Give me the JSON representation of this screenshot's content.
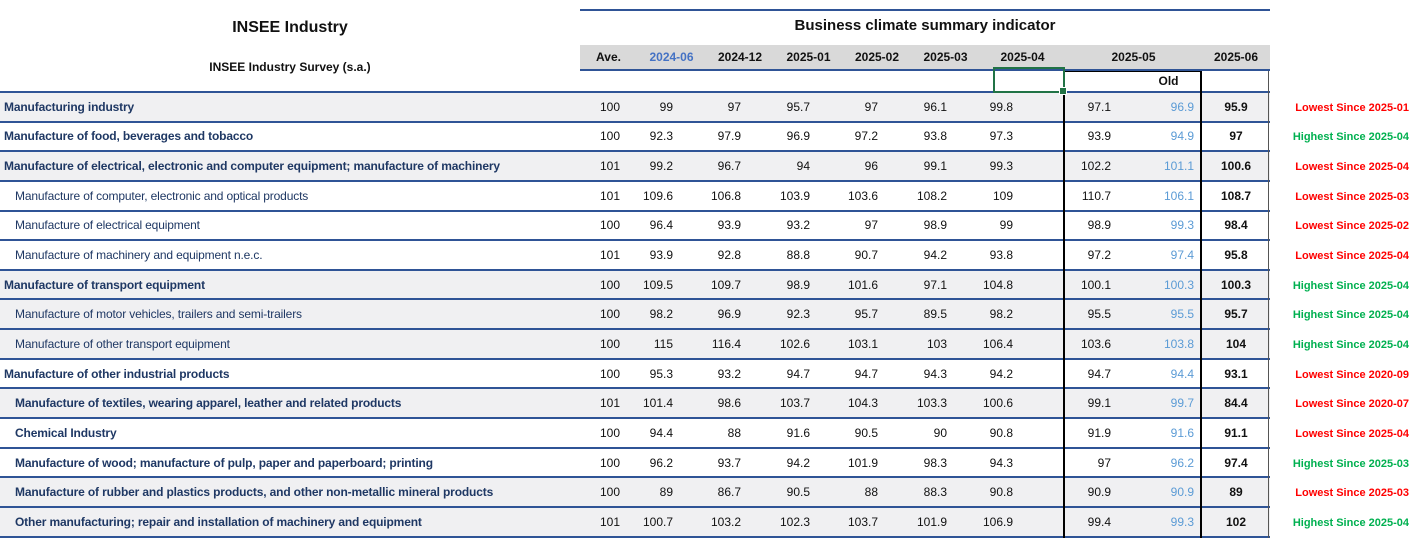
{
  "left_header": {
    "title": "INSEE Industry",
    "subtitle": "INSEE Industry Survey (s.a.)"
  },
  "table": {
    "title": "Business climate summary indicator",
    "columns": [
      "Ave.",
      "2024-06",
      "2024-12",
      "2025-01",
      "2025-02",
      "2025-03",
      "2025-04",
      "2025-05",
      "2025-06"
    ],
    "old_sublabel": "Old",
    "highlighted_column": "2024-06",
    "rows": [
      {
        "label": "Manufacturing industry",
        "bold": true,
        "indent": 0,
        "shaded": true,
        "values": [
          "100",
          "99",
          "97",
          "95.7",
          "97",
          "96.1",
          "99.8",
          "97.1",
          "96.9",
          "95.9"
        ],
        "status": {
          "text": "Lowest Since 2025-01",
          "type": "lowest"
        }
      },
      {
        "label": "Manufacture of food, beverages and tobacco",
        "bold": true,
        "indent": 0,
        "shaded": false,
        "values": [
          "100",
          "92.3",
          "97.9",
          "96.9",
          "97.2",
          "93.8",
          "97.3",
          "93.9",
          "94.9",
          "97"
        ],
        "status": {
          "text": "Highest Since 2025-04",
          "type": "highest"
        }
      },
      {
        "label": "Manufacture of electrical, electronic and computer equipment; manufacture of machinery",
        "bold": true,
        "indent": 0,
        "shaded": true,
        "values": [
          "101",
          "99.2",
          "96.7",
          "94",
          "96",
          "99.1",
          "99.3",
          "102.2",
          "101.1",
          "100.6"
        ],
        "status": {
          "text": "Lowest Since 2025-04",
          "type": "lowest"
        }
      },
      {
        "label": "Manufacture of computer, electronic and optical products",
        "bold": false,
        "indent": 1,
        "shaded": false,
        "values": [
          "101",
          "109.6",
          "106.8",
          "103.9",
          "103.6",
          "108.2",
          "109",
          "110.7",
          "106.1",
          "108.7"
        ],
        "status": {
          "text": "Lowest Since 2025-03",
          "type": "lowest"
        }
      },
      {
        "label": "Manufacture of electrical equipment",
        "bold": false,
        "indent": 1,
        "shaded": false,
        "values": [
          "100",
          "96.4",
          "93.9",
          "93.2",
          "97",
          "98.9",
          "99",
          "98.9",
          "99.3",
          "98.4"
        ],
        "status": {
          "text": "Lowest Since 2025-02",
          "type": "lowest"
        }
      },
      {
        "label": "Manufacture of machinery and equipment n.e.c.",
        "bold": false,
        "indent": 1,
        "shaded": false,
        "values": [
          "101",
          "93.9",
          "92.8",
          "88.8",
          "90.7",
          "94.2",
          "93.8",
          "97.2",
          "97.4",
          "95.8"
        ],
        "status": {
          "text": "Lowest Since 2025-04",
          "type": "lowest"
        }
      },
      {
        "label": "Manufacture of transport equipment",
        "bold": true,
        "indent": 0,
        "shaded": true,
        "values": [
          "100",
          "109.5",
          "109.7",
          "98.9",
          "101.6",
          "97.1",
          "104.8",
          "100.1",
          "100.3",
          "100.3"
        ],
        "status": {
          "text": "Highest Since 2025-04",
          "type": "highest"
        }
      },
      {
        "label": "Manufacture of motor vehicles, trailers and semi-trailers",
        "bold": false,
        "indent": 1,
        "shaded": true,
        "values": [
          "100",
          "98.2",
          "96.9",
          "92.3",
          "95.7",
          "89.5",
          "98.2",
          "95.5",
          "95.5",
          "95.7"
        ],
        "status": {
          "text": "Highest Since 2025-04",
          "type": "highest"
        }
      },
      {
        "label": "Manufacture of other transport equipment",
        "bold": false,
        "indent": 1,
        "shaded": true,
        "values": [
          "100",
          "115",
          "116.4",
          "102.6",
          "103.1",
          "103",
          "106.4",
          "103.6",
          "103.8",
          "104"
        ],
        "status": {
          "text": "Highest Since 2025-04",
          "type": "highest"
        }
      },
      {
        "label": "Manufacture of other industrial products",
        "bold": true,
        "indent": 0,
        "shaded": false,
        "values": [
          "100",
          "95.3",
          "93.2",
          "94.7",
          "94.7",
          "94.3",
          "94.2",
          "94.7",
          "94.4",
          "93.1"
        ],
        "status": {
          "text": "Lowest Since 2020-09",
          "type": "lowest"
        }
      },
      {
        "label": "Manufacture of textiles, wearing apparel, leather and related products",
        "bold": true,
        "indent": 1,
        "shaded": true,
        "values": [
          "101",
          "101.4",
          "98.6",
          "103.7",
          "104.3",
          "103.3",
          "100.6",
          "99.1",
          "99.7",
          "84.4"
        ],
        "status": {
          "text": "Lowest Since 2020-07",
          "type": "lowest"
        }
      },
      {
        "label": "Chemical Industry",
        "bold": true,
        "indent": 1,
        "shaded": false,
        "values": [
          "100",
          "94.4",
          "88",
          "91.6",
          "90.5",
          "90",
          "90.8",
          "91.9",
          "91.6",
          "91.1"
        ],
        "status": {
          "text": "Lowest Since 2025-04",
          "type": "lowest"
        }
      },
      {
        "label": "Manufacture of wood; manufacture of pulp, paper and paperboard; printing",
        "bold": true,
        "indent": 1,
        "shaded": false,
        "values": [
          "100",
          "96.2",
          "93.7",
          "94.2",
          "101.9",
          "98.3",
          "94.3",
          "97",
          "96.2",
          "97.4"
        ],
        "status": {
          "text": "Highest Since 2025-03",
          "type": "highest"
        }
      },
      {
        "label": "Manufacture of rubber and plastics products, and other non-metallic mineral products",
        "bold": true,
        "indent": 1,
        "shaded": true,
        "values": [
          "100",
          "89",
          "86.7",
          "90.5",
          "88",
          "88.3",
          "90.8",
          "90.9",
          "90.9",
          "89"
        ],
        "status": {
          "text": "Lowest Since 2025-03",
          "type": "lowest"
        }
      },
      {
        "label": "Other manufacturing; repair and installation of machinery and equipment",
        "bold": true,
        "indent": 1,
        "shaded": true,
        "values": [
          "101",
          "100.7",
          "103.2",
          "102.3",
          "103.7",
          "101.9",
          "106.9",
          "99.4",
          "99.3",
          "102"
        ],
        "status": {
          "text": "Highest Since 2025-04",
          "type": "highest"
        }
      }
    ]
  },
  "colors": {
    "accent_line": "#2F5496",
    "label_text": "#1F3864",
    "old_value_blue": "#5B9BD5",
    "header_highlight_blue": "#4472C4",
    "status_lowest": "#FF0000",
    "status_highest": "#00B050",
    "selection_green": "#217346",
    "shaded_row": "#F0F0F2",
    "header_bg": "#D9D9D9"
  }
}
